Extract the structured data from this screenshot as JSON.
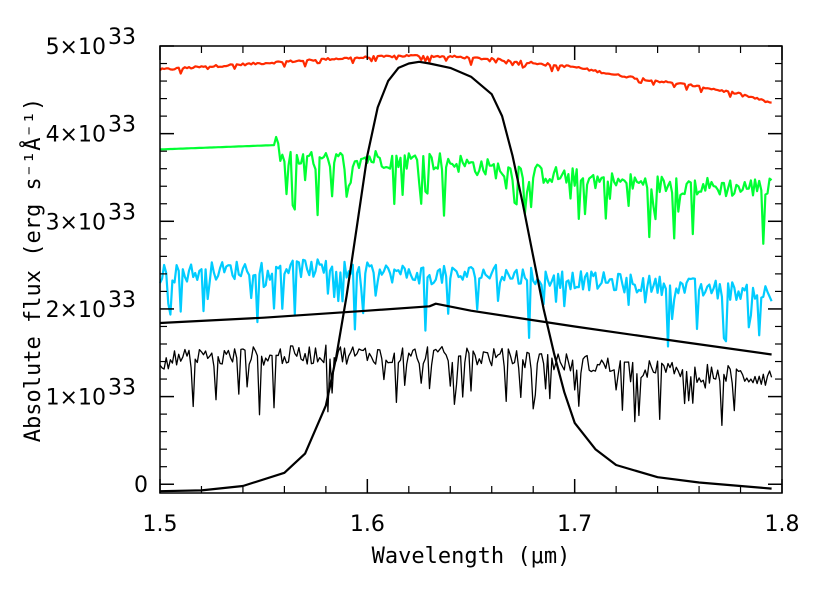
{
  "chart_data": {
    "type": "line",
    "title": "",
    "xlabel": "Wavelength (μm)",
    "ylabel": "Absolute flux (erg s⁻¹Å⁻¹)",
    "xlim": [
      1.5,
      1.8
    ],
    "ylim": [
      -0.1,
      5.0
    ],
    "y_multiplier": "×10^33",
    "grid": false,
    "legend": "none",
    "x_ticks": [
      {
        "value": 1.5,
        "label": "1.5"
      },
      {
        "value": 1.6,
        "label": "1.6"
      },
      {
        "value": 1.7,
        "label": "1.7"
      },
      {
        "value": 1.8,
        "label": "1.8"
      }
    ],
    "y_ticks": [
      {
        "value": 0,
        "label": "0"
      },
      {
        "value": 1,
        "label": "1×10"
      },
      {
        "value": 2,
        "label": "2×10"
      },
      {
        "value": 3,
        "label": "3×10"
      },
      {
        "value": 4,
        "label": "4×10"
      },
      {
        "value": 5,
        "label": "5×10"
      }
    ],
    "y_tick_exponent": "33",
    "series": [
      {
        "color": "#ff2a00",
        "noise": 0.025,
        "x": [
          1.5,
          1.52,
          1.54,
          1.56,
          1.58,
          1.6,
          1.62,
          1.64,
          1.66,
          1.68,
          1.7,
          1.72,
          1.74,
          1.76,
          1.78,
          1.795
        ],
        "y": [
          4.73,
          4.76,
          4.79,
          4.82,
          4.85,
          4.87,
          4.89,
          4.88,
          4.85,
          4.81,
          4.76,
          4.67,
          4.6,
          4.54,
          4.45,
          4.35
        ]
      },
      {
        "color": "#00ff33",
        "noise": 0.22,
        "x": [
          1.5,
          1.556,
          1.56,
          1.58,
          1.6,
          1.62,
          1.64,
          1.66,
          1.68,
          1.7,
          1.72,
          1.74,
          1.76,
          1.78,
          1.795
        ],
        "y": [
          3.82,
          3.87,
          3.7,
          3.68,
          3.72,
          3.7,
          3.68,
          3.6,
          3.55,
          3.5,
          3.45,
          3.42,
          3.4,
          3.38,
          3.4
        ]
      },
      {
        "color": "#00ccff",
        "noise": 0.22,
        "x": [
          1.5,
          1.52,
          1.54,
          1.56,
          1.58,
          1.6,
          1.62,
          1.64,
          1.66,
          1.68,
          1.7,
          1.72,
          1.74,
          1.76,
          1.78,
          1.795
        ],
        "y": [
          2.4,
          2.42,
          2.45,
          2.48,
          2.45,
          2.42,
          2.4,
          2.38,
          2.4,
          2.36,
          2.33,
          2.3,
          2.27,
          2.24,
          2.2,
          2.18
        ]
      },
      {
        "color": "#000000",
        "noise": 0.0,
        "x": [
          1.5,
          1.55,
          1.6,
          1.63,
          1.633,
          1.65,
          1.7,
          1.75,
          1.795
        ],
        "y": [
          1.84,
          1.9,
          1.98,
          2.03,
          2.06,
          1.98,
          1.8,
          1.63,
          1.48
        ]
      },
      {
        "color": "#000000",
        "noise": 0.22,
        "thin": true,
        "x": [
          1.5,
          1.52,
          1.54,
          1.56,
          1.58,
          1.6,
          1.62,
          1.64,
          1.66,
          1.68,
          1.7,
          1.72,
          1.74,
          1.76,
          1.78,
          1.795
        ],
        "y": [
          1.42,
          1.44,
          1.46,
          1.47,
          1.48,
          1.48,
          1.47,
          1.46,
          1.45,
          1.42,
          1.38,
          1.34,
          1.3,
          1.27,
          1.24,
          1.22
        ]
      },
      {
        "color": "#000000",
        "noise": 0.0,
        "x": [
          1.5,
          1.52,
          1.54,
          1.56,
          1.57,
          1.58,
          1.585,
          1.59,
          1.595,
          1.6,
          1.605,
          1.61,
          1.615,
          1.62,
          1.625,
          1.63,
          1.64,
          1.65,
          1.66,
          1.665,
          1.67,
          1.675,
          1.68,
          1.685,
          1.69,
          1.695,
          1.7,
          1.71,
          1.72,
          1.74,
          1.76,
          1.78,
          1.795
        ],
        "y": [
          -0.08,
          -0.07,
          -0.02,
          0.13,
          0.35,
          0.9,
          1.45,
          2.15,
          2.95,
          3.75,
          4.3,
          4.6,
          4.75,
          4.8,
          4.82,
          4.8,
          4.75,
          4.65,
          4.45,
          4.2,
          3.75,
          3.2,
          2.6,
          2.0,
          1.5,
          1.05,
          0.7,
          0.4,
          0.22,
          0.08,
          0.02,
          -0.02,
          -0.05
        ]
      }
    ]
  }
}
